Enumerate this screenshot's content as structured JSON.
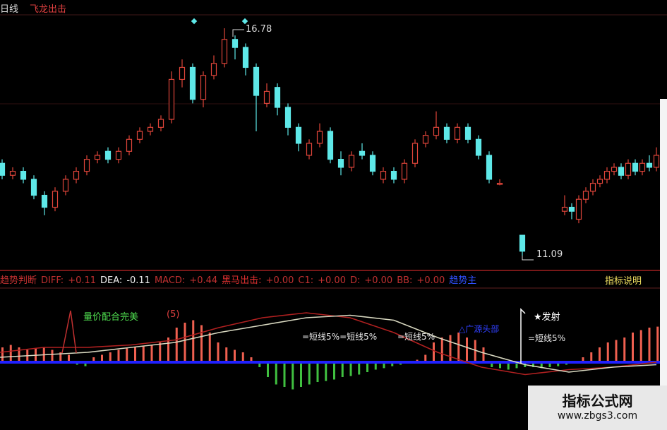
{
  "header": {
    "period": "日线",
    "indicator_name": "飞龙出击"
  },
  "price_labels": {
    "high": "16.78",
    "low": "11.09"
  },
  "indicator_row": {
    "name": "趋势判断",
    "diff_label": "DIFF:",
    "diff": "+0.11",
    "dea_label": "DEA:",
    "dea": "-0.11",
    "macd_label": "MACD:",
    "macd": "+0.44",
    "hm_label": "黑马出击:",
    "hm": "+0.00",
    "c1_label": "C1:",
    "c1": "+0.00",
    "d_label": "D:",
    "d": "+0.00",
    "bb_label": "BB:",
    "bb": "+0.00",
    "blue_label": "趋势主",
    "help": "指标说明"
  },
  "annotations": {
    "volume_price": "量价配合完美",
    "volume_price_num": "(5)",
    "short1": "=短线5%=短线5%",
    "short2": "=短线5%",
    "blue_tag": "△广源头部",
    "launch": "★发射",
    "short3": "=短线5%"
  },
  "watermark": {
    "title": "指标公式网",
    "url": "www.zbgs3.com"
  },
  "colors": {
    "up": "#e0453a",
    "down": "#5ee8e8",
    "macd_up": "#f06050",
    "macd_down": "#40c040",
    "zero": "#2020ff",
    "dea": "#d8d8c0",
    "diff": "#b02020"
  },
  "chart_data": {
    "type": "candlestick",
    "price_range": [
      11.09,
      16.78
    ],
    "candles": [
      [
        13.4,
        13.1,
        13.5,
        13.0
      ],
      [
        13.1,
        13.2,
        13.3,
        13.0
      ],
      [
        13.2,
        13.0,
        13.3,
        12.9
      ],
      [
        13.0,
        12.6,
        13.1,
        12.5
      ],
      [
        12.6,
        12.3,
        12.7,
        12.1
      ],
      [
        12.3,
        12.7,
        12.8,
        12.2
      ],
      [
        12.7,
        13.0,
        13.1,
        12.6
      ],
      [
        13.0,
        13.2,
        13.3,
        12.9
      ],
      [
        13.2,
        13.5,
        13.6,
        13.1
      ],
      [
        13.5,
        13.6,
        13.7,
        13.4
      ],
      [
        13.7,
        13.5,
        13.8,
        13.4
      ],
      [
        13.5,
        13.7,
        13.8,
        13.4
      ],
      [
        13.7,
        14.0,
        14.1,
        13.6
      ],
      [
        14.0,
        14.2,
        14.3,
        13.9
      ],
      [
        14.2,
        14.3,
        14.4,
        14.1
      ],
      [
        14.3,
        14.5,
        14.6,
        14.2
      ],
      [
        14.5,
        15.5,
        15.7,
        14.4
      ],
      [
        15.5,
        15.8,
        16.0,
        15.3
      ],
      [
        15.8,
        15.0,
        15.9,
        14.9
      ],
      [
        15.0,
        15.6,
        15.7,
        14.8
      ],
      [
        15.6,
        15.9,
        16.1,
        15.5
      ],
      [
        15.9,
        16.5,
        16.78,
        15.8
      ],
      [
        16.5,
        16.3,
        16.6,
        16.0
      ],
      [
        16.3,
        15.8,
        16.4,
        15.6
      ],
      [
        15.8,
        15.1,
        15.9,
        14.2
      ],
      [
        14.9,
        15.2,
        15.4,
        14.8
      ],
      [
        15.3,
        14.8,
        15.4,
        14.6
      ],
      [
        14.8,
        14.3,
        14.9,
        14.1
      ],
      [
        14.3,
        13.9,
        14.4,
        13.7
      ],
      [
        13.6,
        13.9,
        14.0,
        13.5
      ],
      [
        13.9,
        14.2,
        14.4,
        13.8
      ],
      [
        14.2,
        13.5,
        14.3,
        13.4
      ],
      [
        13.5,
        13.3,
        13.7,
        13.1
      ],
      [
        13.3,
        13.6,
        13.7,
        13.2
      ],
      [
        13.7,
        13.6,
        13.9,
        13.5
      ],
      [
        13.6,
        13.2,
        13.7,
        13.1
      ],
      [
        13.0,
        13.2,
        13.3,
        12.9
      ],
      [
        13.2,
        13.0,
        13.3,
        12.9
      ],
      [
        13.0,
        13.4,
        13.5,
        12.9
      ],
      [
        13.4,
        13.9,
        14.0,
        13.3
      ],
      [
        13.9,
        14.1,
        14.2,
        13.8
      ],
      [
        14.1,
        14.3,
        14.7,
        14.0
      ],
      [
        14.3,
        14.0,
        14.4,
        13.9
      ],
      [
        14.0,
        14.3,
        14.4,
        13.9
      ],
      [
        14.3,
        14.0,
        14.4,
        13.9
      ],
      [
        14.0,
        13.6,
        14.1,
        13.5
      ],
      [
        13.6,
        13.0,
        13.7,
        12.9
      ],
      [
        12.9,
        12.9,
        13.0,
        12.85
      ],
      [
        11.6,
        11.2,
        11.6,
        11.09
      ],
      [
        12.2,
        12.3,
        12.6,
        12.1
      ],
      [
        12.3,
        12.2,
        12.4,
        12.0
      ],
      [
        12.0,
        12.5,
        12.6,
        11.9
      ],
      [
        12.5,
        12.7,
        12.8,
        12.4
      ],
      [
        12.7,
        12.9,
        13.0,
        12.6
      ],
      [
        12.9,
        13.0,
        13.1,
        12.8
      ],
      [
        13.0,
        13.2,
        13.3,
        12.9
      ],
      [
        13.2,
        13.3,
        13.4,
        13.1
      ],
      [
        13.3,
        13.1,
        13.4,
        13.0
      ],
      [
        13.1,
        13.4,
        13.5,
        13.0
      ],
      [
        13.4,
        13.2,
        13.5,
        13.1
      ],
      [
        13.2,
        13.4,
        13.5,
        13.1
      ],
      [
        13.4,
        13.3,
        13.6,
        13.2
      ],
      [
        13.3,
        13.6,
        13.8,
        13.2
      ]
    ],
    "macd": [
      0.3,
      0.35,
      0.3,
      0.25,
      0.28,
      0.3,
      0.25,
      0.2,
      0.15,
      -0.05,
      -0.08,
      0.1,
      0.15,
      0.2,
      0.25,
      0.28,
      0.3,
      0.32,
      0.35,
      0.4,
      0.5,
      0.7,
      0.8,
      0.85,
      0.75,
      0.6,
      0.4,
      0.3,
      0.25,
      0.2,
      0.1,
      -0.1,
      -0.3,
      -0.45,
      -0.5,
      -0.55,
      -0.5,
      -0.45,
      -0.4,
      -0.38,
      -0.35,
      -0.3,
      -0.28,
      -0.25,
      -0.2,
      -0.15,
      -0.12,
      -0.08,
      -0.05,
      0.02,
      0.05,
      0.15,
      0.4,
      0.5,
      0.55,
      0.6,
      0.5,
      0.45,
      0.3,
      -0.1,
      -0.12,
      -0.15,
      -0.12,
      -0.1,
      -0.1,
      -0.12,
      -0.1,
      -0.08,
      -0.05,
      -0.02,
      0.1,
      0.2,
      0.3,
      0.4,
      0.45,
      0.5,
      0.6,
      0.65,
      0.7,
      0.72
    ],
    "dea": [
      0.1,
      0.15,
      0.2,
      0.3,
      0.4,
      0.6,
      0.75,
      0.9,
      0.95,
      0.85,
      0.5,
      0.2,
      -0.05,
      -0.2,
      -0.1,
      -0.05
    ],
    "diff": [
      0.2,
      0.3,
      0.3,
      0.35,
      0.45,
      0.7,
      0.9,
      1.0,
      0.9,
      0.6,
      0.2,
      -0.1,
      -0.25,
      -0.15,
      -0.1,
      0.0
    ]
  }
}
